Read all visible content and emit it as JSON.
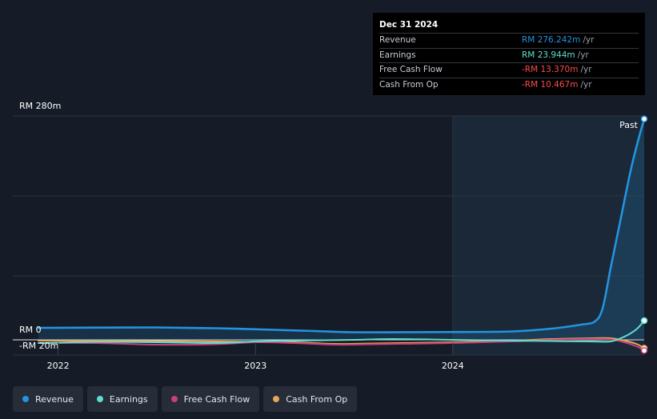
{
  "tooltip": {
    "date": "Dec 31 2024",
    "rows": [
      {
        "label": "Revenue",
        "value": "RM 276.242m",
        "unit": "/yr",
        "color": "#2394df"
      },
      {
        "label": "Earnings",
        "value": "RM 23.944m",
        "unit": "/yr",
        "color": "#5de0cf"
      },
      {
        "label": "Free Cash Flow",
        "value": "-RM 13.370m",
        "unit": "/yr",
        "color": "#ff4a4a"
      },
      {
        "label": "Cash From Op",
        "value": "-RM 10.467m",
        "unit": "/yr",
        "color": "#ff4a4a"
      }
    ]
  },
  "legend": [
    {
      "label": "Revenue",
      "color": "#2394df"
    },
    {
      "label": "Earnings",
      "color": "#5de0cf"
    },
    {
      "label": "Free Cash Flow",
      "color": "#c9407a"
    },
    {
      "label": "Cash From Op",
      "color": "#e8a55b"
    }
  ],
  "chart_data": {
    "type": "line",
    "title": "",
    "xlabel": "",
    "ylabel": "",
    "ylim": [
      -20,
      280
    ],
    "y_labels": {
      "top": "RM 280m",
      "zero": "RM 0",
      "bottom": "-RM 20m"
    },
    "x_ticks": [
      "2022",
      "2023",
      "2024"
    ],
    "past_label": "Past",
    "x_range": [
      2021.9,
      2024.97
    ],
    "past_start": 2024.0,
    "series": [
      {
        "name": "Revenue",
        "color": "#2394df",
        "x": [
          2021.9,
          2022.2,
          2022.5,
          2022.8,
          2023.1,
          2023.3,
          2023.5,
          2023.8,
          2024.0,
          2024.3,
          2024.5,
          2024.65,
          2024.72,
          2024.76,
          2024.8,
          2024.85,
          2024.9,
          2024.94,
          2024.97
        ],
        "values": [
          15,
          15.3,
          15.5,
          14.5,
          12.5,
          11,
          9.5,
          9.6,
          9.8,
          10.5,
          14,
          19,
          23,
          40,
          90,
          150,
          210,
          250,
          276.242
        ]
      },
      {
        "name": "Earnings",
        "color": "#5de0cf",
        "x": [
          2021.9,
          2022.2,
          2022.5,
          2022.8,
          2023.0,
          2023.2,
          2023.5,
          2023.7,
          2024.0,
          2024.3,
          2024.5,
          2024.7,
          2024.8,
          2024.87,
          2024.93,
          2024.97
        ],
        "values": [
          -4,
          -2.5,
          -3,
          -4,
          -2,
          -1,
          0,
          1,
          0,
          -1,
          -1.5,
          -2,
          -2,
          4,
          13,
          23.944
        ]
      },
      {
        "name": "Free Cash Flow",
        "color": "#c9407a",
        "x": [
          2021.9,
          2022.2,
          2022.5,
          2022.8,
          2023.0,
          2023.2,
          2023.4,
          2023.6,
          2024.0,
          2024.3,
          2024.5,
          2024.7,
          2024.8,
          2024.87,
          2024.93,
          2024.97
        ],
        "values": [
          -4,
          -4,
          -6,
          -5.5,
          -3,
          -4,
          -6,
          -5.5,
          -4,
          -2,
          0,
          1,
          0.5,
          -3,
          -8,
          -13.37
        ]
      },
      {
        "name": "Cash From Op",
        "color": "#e8a55b",
        "x": [
          2021.9,
          2022.2,
          2022.5,
          2022.8,
          2023.0,
          2023.2,
          2023.4,
          2023.6,
          2024.0,
          2024.3,
          2024.5,
          2024.7,
          2024.8,
          2024.87,
          2024.93,
          2024.97
        ],
        "values": [
          -1,
          -1,
          -1.5,
          -2,
          -2.5,
          -3,
          -5,
          -4.5,
          -3,
          -1,
          1,
          2,
          2,
          -1,
          -5,
          -10.467
        ]
      }
    ]
  }
}
